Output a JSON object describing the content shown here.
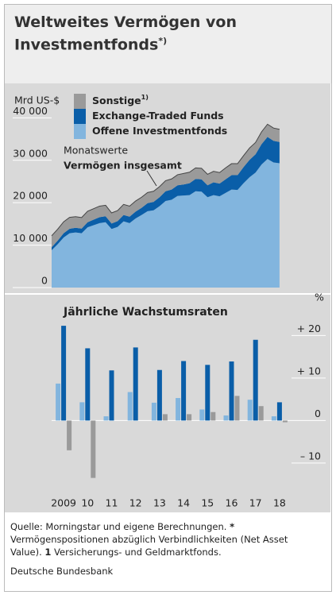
{
  "header": {
    "title": "Weltweites Vermögen von Investmentfonds",
    "title_note": "*)"
  },
  "chart_data": [
    {
      "type": "area",
      "stacked": true,
      "y_label": "Mrd US-$",
      "annotations": [
        "Monatswerte",
        "Vermögen insgesamt"
      ],
      "x": [
        2009.0,
        2009.25,
        2009.5,
        2009.75,
        2010.0,
        2010.25,
        2010.5,
        2010.75,
        2011.0,
        2011.25,
        2011.5,
        2011.75,
        2012.0,
        2012.25,
        2012.5,
        2012.75,
        2013.0,
        2013.25,
        2013.5,
        2013.75,
        2014.0,
        2014.25,
        2014.5,
        2014.75,
        2015.0,
        2015.25,
        2015.5,
        2015.75,
        2016.0,
        2016.25,
        2016.5,
        2016.75,
        2017.0,
        2017.25,
        2017.5,
        2017.75,
        2018.0,
        2018.25,
        2018.5
      ],
      "xlim": [
        2009,
        2019
      ],
      "ylim": [
        0,
        44000
      ],
      "yticks": [
        {
          "value": 0,
          "label": "0"
        },
        {
          "value": 10000,
          "label": "10 000"
        },
        {
          "value": 20000,
          "label": "20 000"
        },
        {
          "value": 30000,
          "label": "30 000"
        },
        {
          "value": 40000,
          "label": "40 000"
        }
      ],
      "series": [
        {
          "name": "Offene Investmentfonds",
          "color": "#82b5de",
          "values": [
            8800,
            10200,
            11800,
            12800,
            13000,
            12800,
            14200,
            14700,
            15200,
            15400,
            13800,
            14300,
            15600,
            15200,
            16300,
            17100,
            18000,
            18200,
            19200,
            20400,
            20700,
            21600,
            21700,
            21800,
            22700,
            22600,
            21300,
            21800,
            21500,
            22300,
            23100,
            23000,
            24600,
            26000,
            27100,
            29000,
            30300,
            29500,
            29300
          ]
        },
        {
          "name": "Exchange-Traded Funds",
          "color": "#0a5ea8",
          "values": [
            700,
            850,
            1000,
            1050,
            1100,
            1100,
            1200,
            1300,
            1400,
            1400,
            1300,
            1350,
            1500,
            1500,
            1600,
            1700,
            1900,
            2000,
            2100,
            2300,
            2400,
            2500,
            2600,
            2800,
            2900,
            2900,
            2800,
            3000,
            3000,
            3200,
            3400,
            3500,
            3800,
            4100,
            4300,
            4800,
            5200,
            5100,
            5000
          ]
        },
        {
          "name": "Sonstige",
          "name_note": "1)",
          "color": "#9a9a9a",
          "values": [
            2700,
            2700,
            2700,
            2700,
            2600,
            2600,
            2600,
            2600,
            2600,
            2600,
            2500,
            2500,
            2500,
            2500,
            2500,
            2500,
            2500,
            2500,
            2500,
            2500,
            2500,
            2500,
            2600,
            2600,
            2600,
            2600,
            2600,
            2600,
            2600,
            2700,
            2700,
            2700,
            2700,
            2800,
            2800,
            2900,
            3000,
            3000,
            3000
          ]
        }
      ]
    },
    {
      "type": "bar",
      "title": "Jährliche Wachstumsraten",
      "y_label": "%",
      "categories": [
        "2009",
        "10",
        "11",
        "12",
        "13",
        "14",
        "15",
        "16",
        "17",
        "18"
      ],
      "ylim": [
        -16,
        24
      ],
      "yticks": [
        {
          "value": 20,
          "label": "+ 20"
        },
        {
          "value": 10,
          "label": "+ 10"
        },
        0,
        {
          "value": -10,
          "label": "– 10"
        }
      ],
      "series": [
        {
          "name": "Offene Investmentfonds",
          "color": "#82b5de",
          "values": [
            8.7,
            4.3,
            1,
            6.7,
            4.2,
            5.3,
            2.6,
            1.2,
            4.9,
            1
          ]
        },
        {
          "name": "Exchange-Traded Funds",
          "color": "#0a5ea8",
          "values": [
            22.3,
            17,
            11.8,
            17.2,
            11.9,
            14,
            13.1,
            13.9,
            19,
            4.3
          ]
        },
        {
          "name": "Sonstige",
          "color": "#9a9a9a",
          "values": [
            -7,
            -13.5,
            0,
            0,
            1.5,
            1.5,
            2,
            5.8,
            3.4,
            -0.4
          ]
        }
      ]
    }
  ],
  "footer": {
    "source": [
      "Quelle: Morningstar und eigene Berechnungen. ",
      "*",
      " Vermögenspositionen abzüglich Verbindlichkeiten (Net Asset Value). ",
      "1",
      " Versicherungs- und Geldmarktfonds."
    ],
    "org": "Deutsche Bundesbank"
  }
}
